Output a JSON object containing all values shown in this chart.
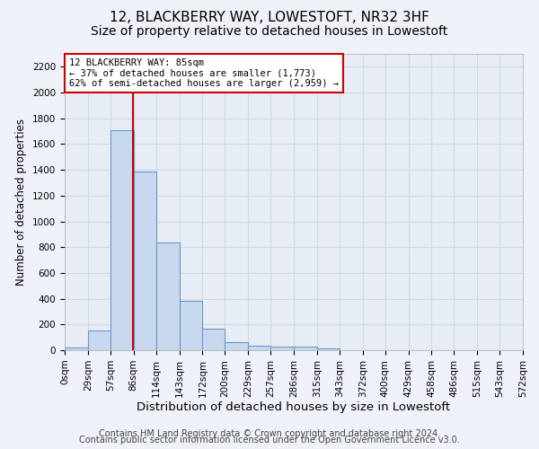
{
  "title1": "12, BLACKBERRY WAY, LOWESTOFT, NR32 3HF",
  "title2": "Size of property relative to detached houses in Lowestoft",
  "xlabel": "Distribution of detached houses by size in Lowestoft",
  "ylabel": "Number of detached properties",
  "footnote1": "Contains HM Land Registry data © Crown copyright and database right 2024.",
  "footnote2": "Contains public sector information licensed under the Open Government Licence v3.0.",
  "bin_edges": [
    0,
    29,
    57,
    86,
    114,
    143,
    172,
    200,
    229,
    257,
    286,
    315,
    343,
    372,
    400,
    429,
    458,
    486,
    515,
    543,
    572
  ],
  "bar_heights": [
    20,
    155,
    1710,
    1390,
    835,
    385,
    165,
    62,
    38,
    28,
    28,
    15,
    0,
    0,
    0,
    0,
    0,
    0,
    0,
    0
  ],
  "bar_color": "#c8d8ee",
  "bar_edge_color": "#6699cc",
  "bar_edge_width": 0.8,
  "property_size": 85,
  "red_line_color": "#cc0000",
  "annotation_line1": "12 BLACKBERRY WAY: 85sqm",
  "annotation_line2": "← 37% of detached houses are smaller (1,773)",
  "annotation_line3": "62% of semi-detached houses are larger (2,959) →",
  "annotation_box_color": "#ffffff",
  "annotation_box_edge_color": "#cc0000",
  "ylim_max": 2300,
  "yticks": [
    0,
    200,
    400,
    600,
    800,
    1000,
    1200,
    1400,
    1600,
    1800,
    2000,
    2200
  ],
  "fig_bg_color": "#eef2f8",
  "plot_bg_color": "#e8edf5",
  "grid_color": "#d0d8e8",
  "title1_fontsize": 11,
  "title2_fontsize": 10,
  "xlabel_fontsize": 9.5,
  "ylabel_fontsize": 8.5,
  "tick_fontsize": 7.5,
  "footnote_fontsize": 7
}
